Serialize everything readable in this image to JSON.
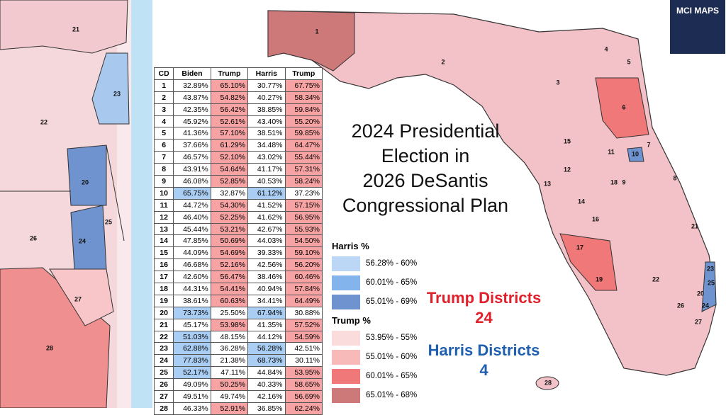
{
  "title_lines": [
    "2024 Presidential",
    "Election in",
    "2026 DeSantis",
    "Congressional Plan"
  ],
  "logo": "MCI MAPS",
  "table": {
    "header": [
      "CD",
      "Biden",
      "Trump",
      "Harris",
      "Trump"
    ],
    "rows": [
      [
        "1",
        "32.89%",
        "65.10%",
        "30.77%",
        "67.75%"
      ],
      [
        "2",
        "43.87%",
        "54.82%",
        "40.27%",
        "58.34%"
      ],
      [
        "3",
        "42.35%",
        "56.42%",
        "38.85%",
        "59.84%"
      ],
      [
        "4",
        "45.92%",
        "52.61%",
        "43.40%",
        "55.20%"
      ],
      [
        "5",
        "41.36%",
        "57.10%",
        "38.51%",
        "59.85%"
      ],
      [
        "6",
        "37.66%",
        "61.29%",
        "34.48%",
        "64.47%"
      ],
      [
        "7",
        "46.57%",
        "52.10%",
        "43.02%",
        "55.44%"
      ],
      [
        "8",
        "43.91%",
        "54.64%",
        "41.17%",
        "57.31%"
      ],
      [
        "9",
        "46.08%",
        "52.85%",
        "40.53%",
        "58.24%"
      ],
      [
        "10",
        "65.75%",
        "32.87%",
        "61.12%",
        "37.23%"
      ],
      [
        "11",
        "44.72%",
        "54.30%",
        "41.52%",
        "57.15%"
      ],
      [
        "12",
        "46.40%",
        "52.25%",
        "41.62%",
        "56.95%"
      ],
      [
        "13",
        "45.44%",
        "53.21%",
        "42.67%",
        "55.93%"
      ],
      [
        "14",
        "47.85%",
        "50.69%",
        "44.03%",
        "54.50%"
      ],
      [
        "15",
        "44.09%",
        "54.69%",
        "39.33%",
        "59.10%"
      ],
      [
        "16",
        "46.68%",
        "52.16%",
        "42.56%",
        "56.20%"
      ],
      [
        "17",
        "42.60%",
        "56.47%",
        "38.46%",
        "60.46%"
      ],
      [
        "18",
        "44.31%",
        "54.41%",
        "40.94%",
        "57.84%"
      ],
      [
        "19",
        "38.61%",
        "60.63%",
        "34.41%",
        "64.49%"
      ],
      [
        "20",
        "73.73%",
        "25.50%",
        "67.94%",
        "30.88%"
      ],
      [
        "21",
        "45.17%",
        "53.98%",
        "41.35%",
        "57.52%"
      ],
      [
        "22",
        "51.03%",
        "48.15%",
        "44.12%",
        "54.59%"
      ],
      [
        "23",
        "62.88%",
        "36.28%",
        "56.28%",
        "42.51%"
      ],
      [
        "24",
        "77.83%",
        "21.38%",
        "68.73%",
        "30.11%"
      ],
      [
        "25",
        "52.17%",
        "47.11%",
        "44.84%",
        "53.95%"
      ],
      [
        "26",
        "49.09%",
        "50.25%",
        "40.33%",
        "58.65%"
      ],
      [
        "27",
        "49.51%",
        "49.74%",
        "42.16%",
        "56.69%"
      ],
      [
        "28",
        "46.33%",
        "52.91%",
        "36.85%",
        "62.24%"
      ]
    ]
  },
  "legend": {
    "harris": {
      "title": "Harris  %",
      "items": [
        "56.28% - 60%",
        "60.01% - 65%",
        "65.01% - 69%"
      ],
      "colors": [
        "#bcd7f5",
        "#84b4ec",
        "#6f93cf"
      ]
    },
    "trump": {
      "title": "Trump  %",
      "items": [
        "53.95% - 55%",
        "55.01% - 60%",
        "60.01% - 65%",
        "65.01% - 68%"
      ],
      "colors": [
        "#fbdcdc",
        "#f8b9b9",
        "#f07878",
        "#cd7979"
      ]
    }
  },
  "totals": {
    "trump_label": "Trump Districts",
    "trump_count": "24",
    "harris_label": "Harris Districts",
    "harris_count": "4"
  },
  "main_map": {
    "labels": [
      "1",
      "2",
      "3",
      "4",
      "5",
      "6",
      "7",
      "8",
      "9",
      "10",
      "11",
      "12",
      "13",
      "14",
      "15",
      "16",
      "17",
      "18",
      "19",
      "20",
      "21",
      "22",
      "23",
      "24",
      "25",
      "26",
      "27",
      "28"
    ]
  },
  "inset_map": {
    "labels": [
      "21",
      "23",
      "22",
      "20",
      "25",
      "26",
      "24",
      "27",
      "28"
    ]
  }
}
